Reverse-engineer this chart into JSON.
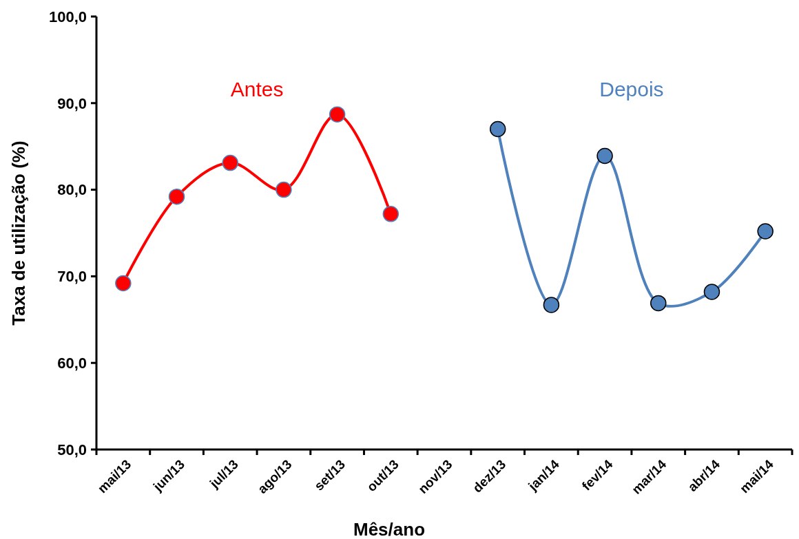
{
  "chart_data": {
    "type": "line",
    "xlabel": "Mês/ano",
    "ylabel": "Taxa de utilização (%)",
    "categories": [
      "mai/13",
      "jun/13",
      "jul/13",
      "ago/13",
      "set/13",
      "out/13",
      "nov/13",
      "dez/13",
      "jan/14",
      "fev/14",
      "mar/14",
      "abr/14",
      "mai/14"
    ],
    "series": [
      {
        "name": "Antes",
        "color": "#ff0000",
        "values": [
          69.2,
          79.2,
          83.1,
          80.0,
          88.7,
          77.2,
          null,
          null,
          null,
          null,
          null,
          null,
          null
        ]
      },
      {
        "name": "Depois",
        "color": "#4f81bd",
        "values": [
          null,
          null,
          null,
          null,
          null,
          null,
          null,
          87.0,
          66.7,
          83.9,
          66.9,
          68.2,
          75.2
        ]
      }
    ],
    "ylim": [
      50,
      100
    ],
    "yticks": [
      {
        "value": 50,
        "label": "50,0"
      },
      {
        "value": 60,
        "label": "60,0"
      },
      {
        "value": 70,
        "label": "70,0"
      },
      {
        "value": 80,
        "label": "80,0"
      },
      {
        "value": 90,
        "label": "90,0"
      },
      {
        "value": 100,
        "label": "100,0"
      }
    ],
    "marker": "circle",
    "line_style": "solid",
    "grid": false
  }
}
